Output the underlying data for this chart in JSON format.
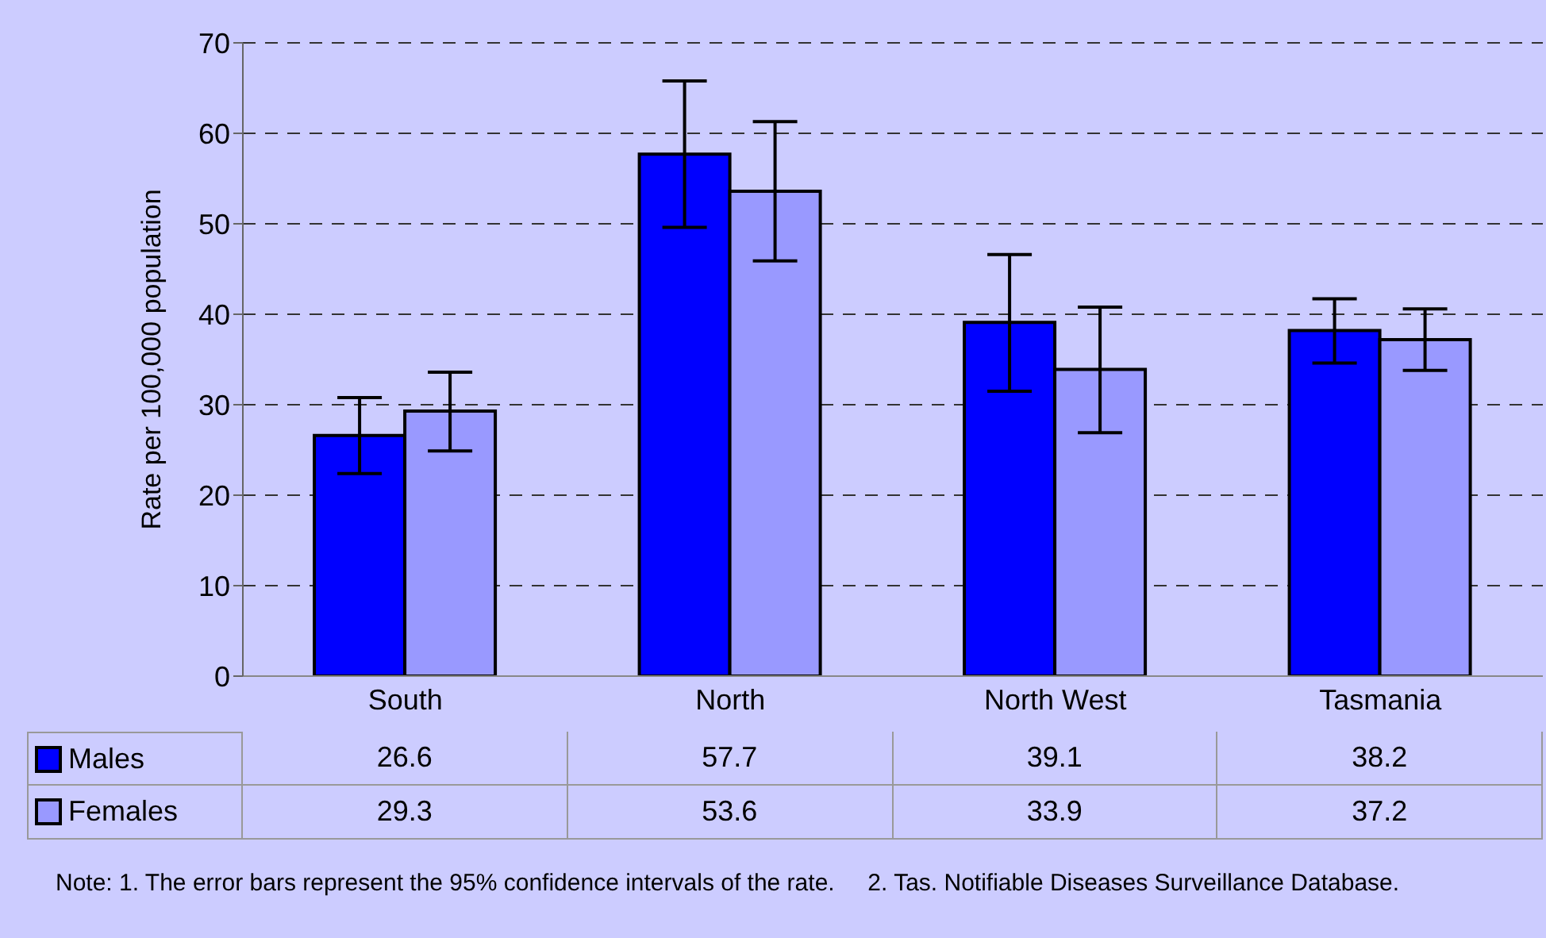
{
  "chart_data": {
    "type": "bar",
    "ylabel": "Rate per 100,000 population",
    "categories": [
      "South",
      "North",
      "North West",
      "Tasmania"
    ],
    "series": [
      {
        "name": "Males",
        "color": "#0000ff",
        "values": [
          26.6,
          57.7,
          39.1,
          38.2
        ],
        "errors": [
          [
            22.4,
            30.8
          ],
          [
            49.6,
            65.8
          ],
          [
            31.5,
            46.6
          ],
          [
            34.6,
            41.7
          ]
        ]
      },
      {
        "name": "Females",
        "color": "#9999ff",
        "values": [
          29.3,
          53.6,
          33.9,
          37.2
        ],
        "errors": [
          [
            24.9,
            33.6
          ],
          [
            45.9,
            61.3
          ],
          [
            26.9,
            40.8
          ],
          [
            33.8,
            40.6
          ]
        ]
      }
    ],
    "ylim": [
      0,
      70
    ],
    "yticks": [
      0,
      10,
      20,
      30,
      40,
      50,
      60,
      70
    ],
    "grid": "y",
    "legend": "bottom",
    "data_labels": true,
    "annotations": [
      "Note: 1. The error bars represent the 95% confidence intervals of the rate.     2. Tas. Notifiable Diseases Surveillance Database."
    ]
  }
}
